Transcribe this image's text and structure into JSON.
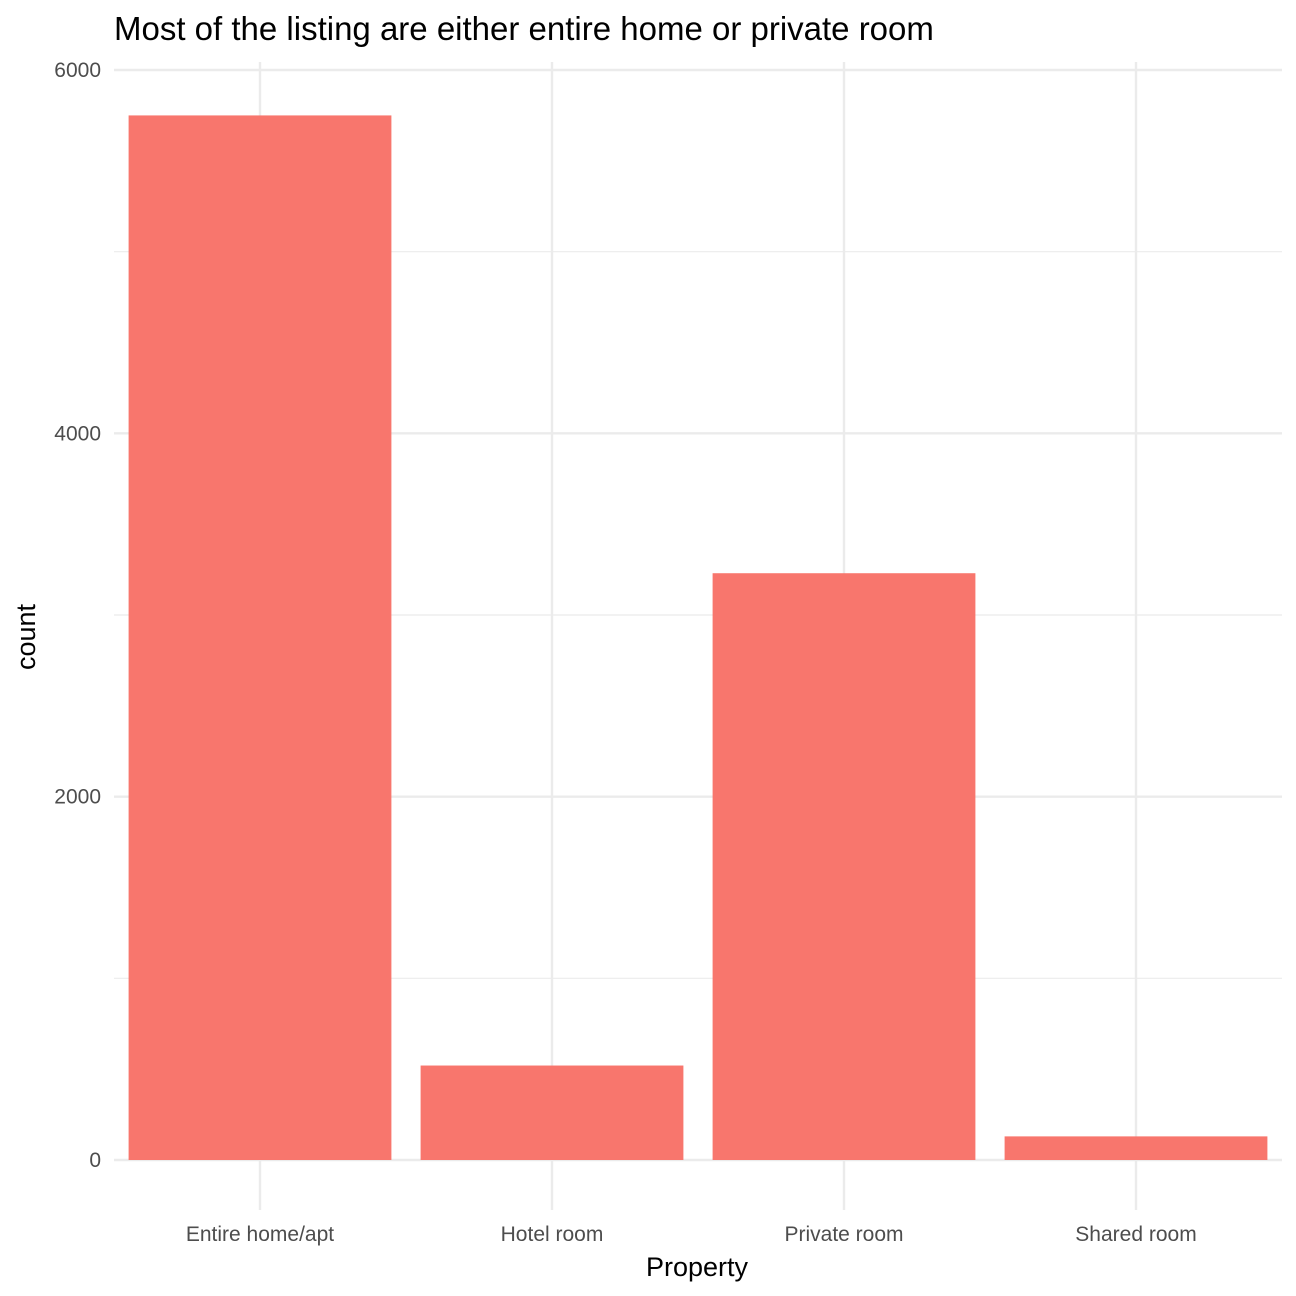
{
  "chart_data": {
    "type": "bar",
    "title": "Most of the listing are either entire home or private room",
    "xlabel": "Property",
    "ylabel": "count",
    "categories": [
      "Entire home/apt",
      "Hotel room",
      "Private room",
      "Shared room"
    ],
    "values": [
      5750,
      520,
      3230,
      130
    ],
    "ylim": [
      0,
      6000
    ],
    "yticks": [
      0,
      2000,
      4000,
      6000
    ],
    "grid": true,
    "bar_color": "#F8766D",
    "grid_color": "#EBEBEB"
  }
}
